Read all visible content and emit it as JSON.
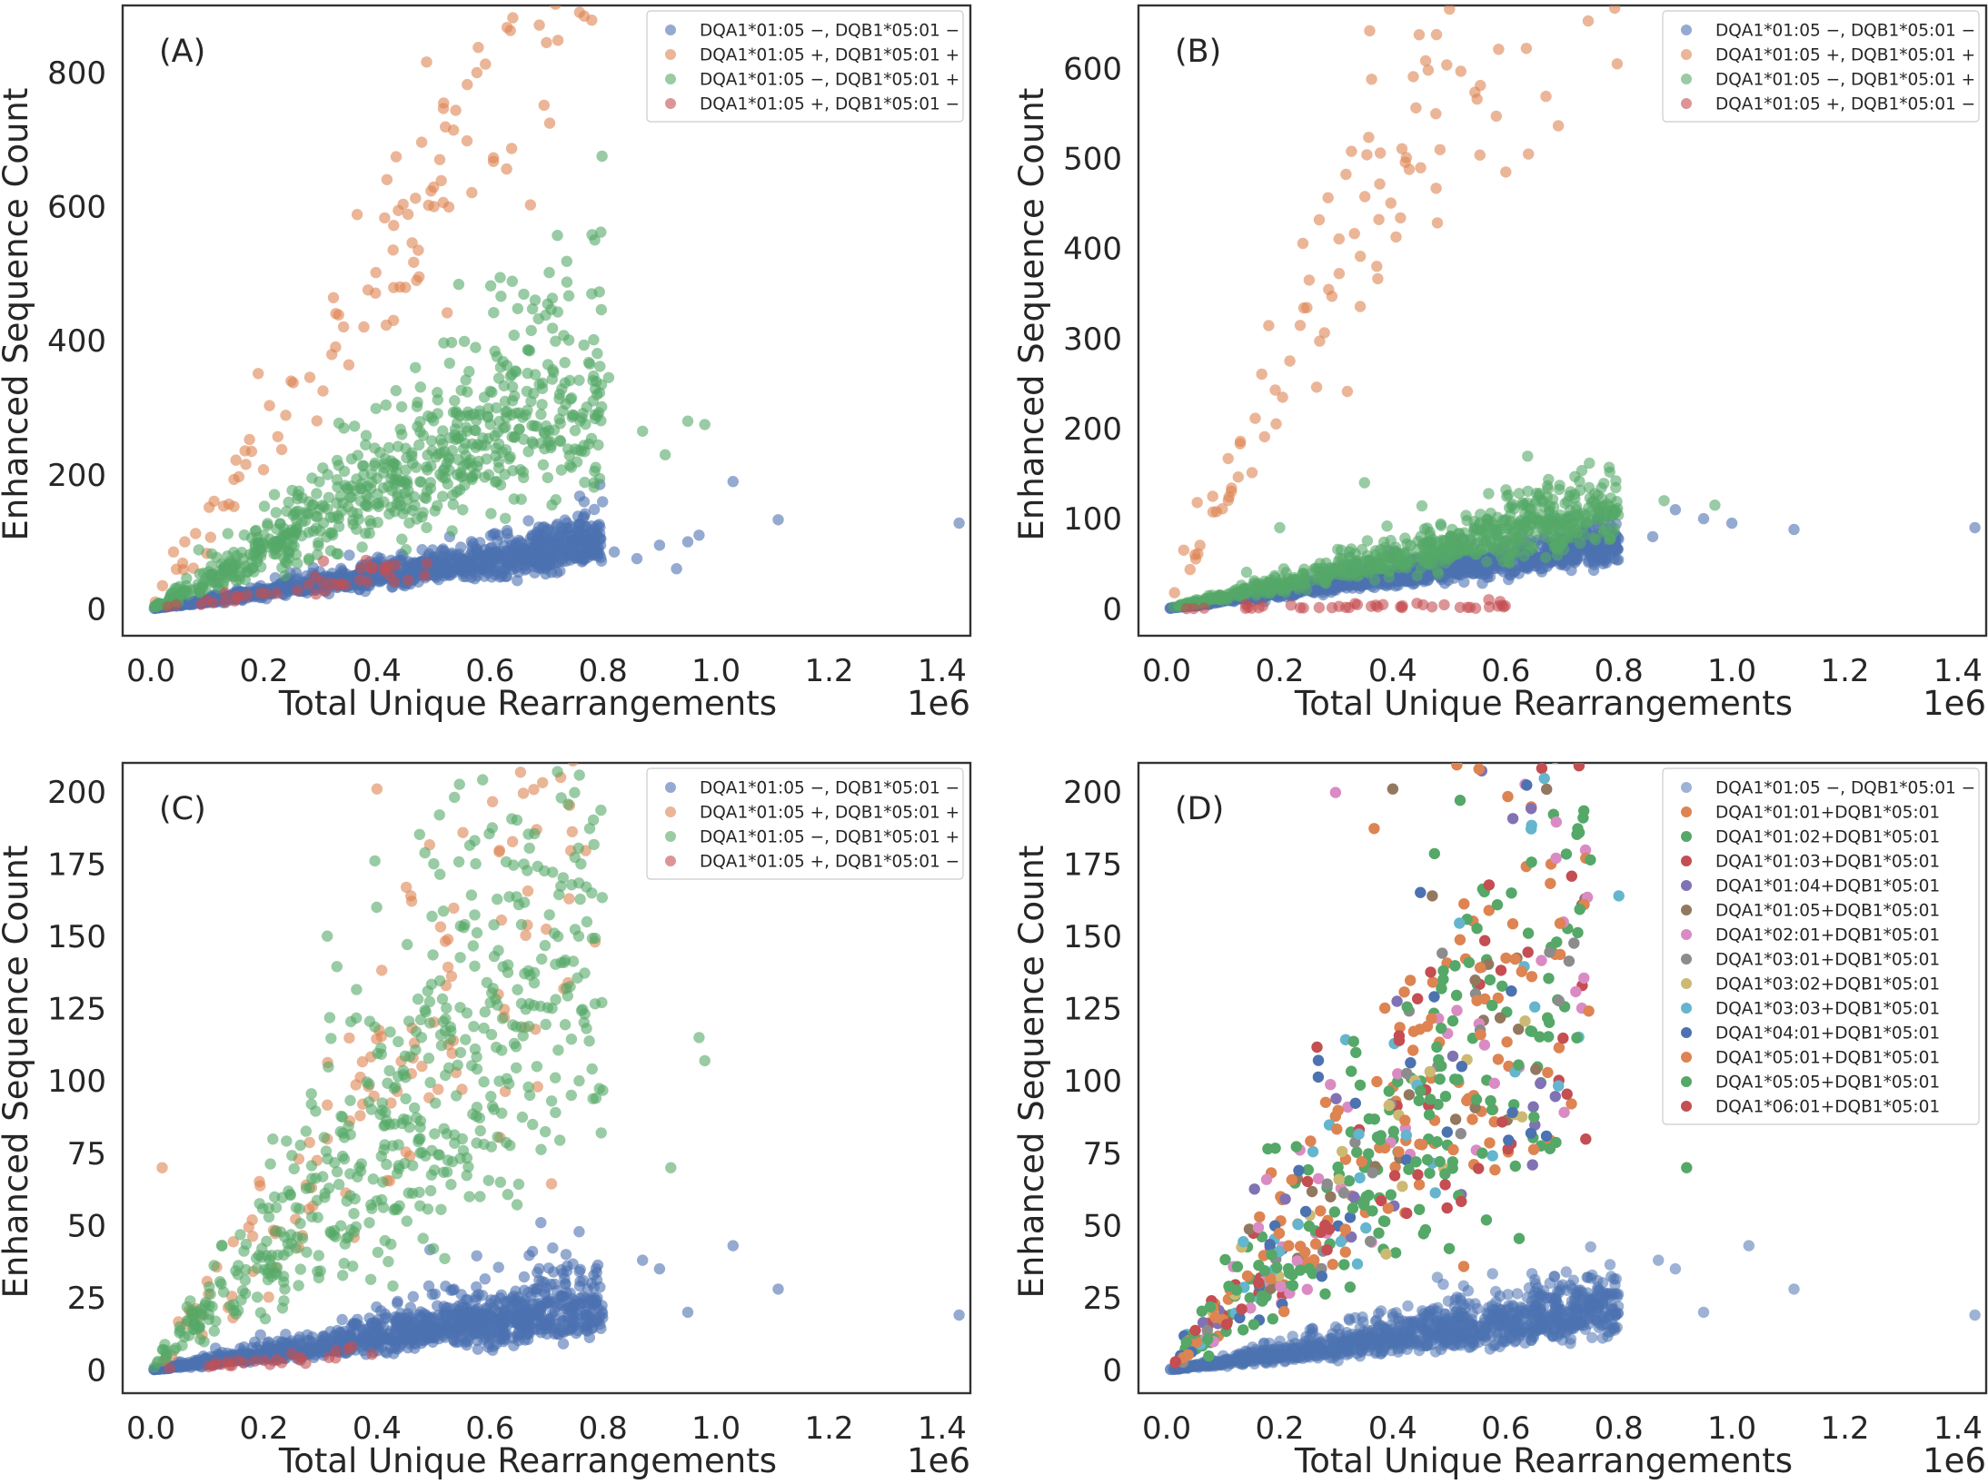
{
  "colors": {
    "blue": "#4c72b0",
    "orange": "#dd8452",
    "green": "#55a868",
    "red": "#c44e52",
    "purple": "#8172b3",
    "brown": "#937860",
    "pink": "#da8bc3",
    "gray": "#8c8c8c",
    "olive": "#ccb974",
    "cyan": "#64b5cd"
  },
  "chart_data": [
    {
      "type": "scatter",
      "panel_label": "(A)",
      "xlabel": "Total Unique Rearrangements",
      "ylabel": "Enhanced Sequence Count",
      "x_offset_text": "1e6",
      "xlim": [
        -0.05,
        1.45
      ],
      "ylim": [
        -40,
        900
      ],
      "xticks": [
        "0.0",
        "0.2",
        "0.4",
        "0.6",
        "0.8",
        "1.0",
        "1.2",
        "1.4"
      ],
      "yticks": [
        "0",
        "200",
        "400",
        "600",
        "800"
      ],
      "legend_position": "top-right",
      "series": [
        {
          "name": "DQA1*01:05 −, DQB1*05:01 −",
          "color": "#4c72b0",
          "alpha": 0.6,
          "count": 1150,
          "x_max": 0.8,
          "slope": 125,
          "spread": 0.2,
          "outliers": [
            [
              0.82,
              85
            ],
            [
              0.86,
              75
            ],
            [
              0.9,
              95
            ],
            [
              0.93,
              60
            ],
            [
              0.95,
              100
            ],
            [
              0.97,
              110
            ],
            [
              1.03,
              190
            ],
            [
              1.11,
              133
            ],
            [
              1.43,
              128
            ]
          ]
        },
        {
          "name": "DQA1*01:05 +, DQB1*05:01 +",
          "color": "#dd8452",
          "alpha": 0.6,
          "count": 120,
          "x_max": 0.82,
          "slope": 1250,
          "spread": 0.16,
          "outliers": [
            [
              0.06,
              100
            ],
            [
              0.04,
              85
            ]
          ]
        },
        {
          "name": "DQA1*01:05 −, DQB1*05:01 +",
          "color": "#55a868",
          "alpha": 0.6,
          "count": 700,
          "x_max": 0.8,
          "slope": 440,
          "spread": 0.27,
          "outliers": [
            [
              0.95,
              280
            ],
            [
              0.98,
              275
            ],
            [
              0.91,
              230
            ],
            [
              0.87,
              265
            ],
            [
              0.81,
              345
            ]
          ]
        },
        {
          "name": "DQA1*01:05 +, DQB1*05:01 −",
          "color": "#c44e52",
          "alpha": 0.6,
          "count": 40,
          "x_max": 0.5,
          "slope": 120,
          "spread": 0.25,
          "outliers": []
        }
      ]
    },
    {
      "type": "scatter",
      "panel_label": "(B)",
      "xlabel": "Total Unique Rearrangements",
      "ylabel": "Enhanced Sequence Count",
      "x_offset_text": "1e6",
      "xlim": [
        -0.05,
        1.45
      ],
      "ylim": [
        -30,
        670
      ],
      "xticks": [
        "0.0",
        "0.2",
        "0.4",
        "0.6",
        "0.8",
        "1.0",
        "1.2",
        "1.4"
      ],
      "yticks": [
        "0",
        "100",
        "200",
        "300",
        "400",
        "500",
        "600"
      ],
      "legend_position": "top-right",
      "series": [
        {
          "name": "DQA1*01:05 −, DQB1*05:01 −",
          "color": "#4c72b0",
          "alpha": 0.6,
          "count": 1150,
          "x_max": 0.8,
          "slope": 90,
          "spread": 0.18,
          "outliers": [
            [
              0.86,
              80
            ],
            [
              0.9,
              110
            ],
            [
              0.95,
              100
            ],
            [
              1.0,
              95
            ],
            [
              1.11,
              88
            ],
            [
              1.43,
              90
            ]
          ]
        },
        {
          "name": "DQA1*01:05 +, DQB1*05:01 +",
          "color": "#dd8452",
          "alpha": 0.6,
          "count": 130,
          "x_max": 0.82,
          "slope": 1200,
          "spread": 0.17,
          "outliers": [
            [
              0.03,
              65
            ],
            [
              0.05,
              60
            ],
            [
              0.6,
              485
            ],
            [
              0.64,
              505
            ]
          ]
        },
        {
          "name": "DQA1*01:05 −, DQB1*05:01 +",
          "color": "#55a868",
          "alpha": 0.6,
          "count": 700,
          "x_max": 0.8,
          "slope": 140,
          "spread": 0.2,
          "outliers": [
            [
              0.88,
              120
            ],
            [
              0.97,
              115
            ],
            [
              0.35,
              140
            ],
            [
              0.2,
              90
            ]
          ]
        },
        {
          "name": "DQA1*01:05 +, DQB1*05:01 −",
          "color": "#c44e52",
          "alpha": 0.6,
          "count": 35,
          "x_max": 0.6,
          "slope": 5,
          "spread": 0.5,
          "outliers": [
            [
              0.14,
              5
            ],
            [
              0.17,
              3
            ],
            [
              0.22,
              4
            ],
            [
              0.37,
              4
            ],
            [
              0.57,
              10
            ],
            [
              0.59,
              8
            ]
          ]
        }
      ]
    },
    {
      "type": "scatter",
      "panel_label": "(C)",
      "xlabel": "Total Unique Rearrangements",
      "ylabel": "Enhanced Sequence Count",
      "x_offset_text": "1e6",
      "xlim": [
        -0.05,
        1.45
      ],
      "ylim": [
        -8,
        210
      ],
      "xticks": [
        "0.0",
        "0.2",
        "0.4",
        "0.6",
        "0.8",
        "1.0",
        "1.2",
        "1.4"
      ],
      "yticks": [
        "0",
        "25",
        "50",
        "75",
        "100",
        "125",
        "150",
        "175",
        "200"
      ],
      "legend_position": "top-right",
      "series": [
        {
          "name": "DQA1*01:05 −, DQB1*05:01 −",
          "color": "#4c72b0",
          "alpha": 0.6,
          "count": 1150,
          "x_max": 0.8,
          "slope": 28,
          "spread": 0.3,
          "outliers": [
            [
              0.87,
              38
            ],
            [
              0.9,
              35
            ],
            [
              0.95,
              20
            ],
            [
              1.03,
              43
            ],
            [
              1.11,
              28
            ],
            [
              1.43,
              19
            ],
            [
              0.69,
              51
            ]
          ]
        },
        {
          "name": "DQA1*01:05 +, DQB1*05:01 +",
          "color": "#dd8452",
          "alpha": 0.6,
          "count": 130,
          "x_max": 0.8,
          "slope": 230,
          "spread": 0.3,
          "outliers": [
            [
              0.4,
              201
            ],
            [
              0.46,
              164
            ],
            [
              0.74,
              163
            ],
            [
              0.02,
              70
            ]
          ]
        },
        {
          "name": "DQA1*01:05 −, DQB1*05:01 +",
          "color": "#55a868",
          "alpha": 0.6,
          "count": 550,
          "x_max": 0.8,
          "slope": 200,
          "spread": 0.35,
          "outliers": [
            [
              0.78,
              165
            ],
            [
              0.92,
              70
            ],
            [
              0.97,
              115
            ],
            [
              0.98,
              107
            ],
            [
              0.66,
              175
            ],
            [
              0.5,
              42
            ]
          ]
        },
        {
          "name": "DQA1*01:05 +, DQB1*05:01 −",
          "color": "#c44e52",
          "alpha": 0.6,
          "count": 25,
          "x_max": 0.4,
          "slope": 15,
          "spread": 0.3,
          "outliers": []
        }
      ]
    },
    {
      "type": "scatter",
      "panel_label": "(D)",
      "xlabel": "Total Unique Rearrangements",
      "ylabel": "Enhanced Sequence Count",
      "x_offset_text": "1e6",
      "xlim": [
        -0.05,
        1.45
      ],
      "ylim": [
        -8,
        210
      ],
      "xticks": [
        "0.0",
        "0.2",
        "0.4",
        "0.6",
        "0.8",
        "1.0",
        "1.2",
        "1.4"
      ],
      "yticks": [
        "0",
        "25",
        "50",
        "75",
        "100",
        "125",
        "150",
        "175",
        "200"
      ],
      "legend_position": "top-right",
      "series": [
        {
          "name": "DQA1*01:05 −, DQB1*05:01 −",
          "color": "#4c72b0",
          "alpha": 0.55,
          "count": 1150,
          "x_max": 0.8,
          "slope": 28,
          "spread": 0.3,
          "outliers": [
            [
              0.87,
              38
            ],
            [
              0.9,
              35
            ],
            [
              0.95,
              20
            ],
            [
              1.03,
              43
            ],
            [
              1.11,
              28
            ],
            [
              1.43,
              19
            ]
          ]
        },
        {
          "name": "DQA1*01:01+DQB1*05:01",
          "color": "#dd8452",
          "alpha": 1,
          "count": 70,
          "x_max": 0.72,
          "slope": 210,
          "spread": 0.35,
          "outliers": [
            [
              0.68,
              175
            ]
          ]
        },
        {
          "name": "DQA1*01:02+DQB1*05:01",
          "color": "#55a868",
          "alpha": 1,
          "count": 110,
          "x_max": 0.75,
          "slope": 205,
          "spread": 0.35,
          "outliers": [
            [
              0.92,
              70
            ],
            [
              0.61,
              165
            ]
          ]
        },
        {
          "name": "DQA1*01:03+DQB1*05:01",
          "color": "#c44e52",
          "alpha": 1,
          "count": 30,
          "x_max": 0.75,
          "slope": 195,
          "spread": 0.35,
          "outliers": []
        },
        {
          "name": "DQA1*01:04+DQB1*05:01",
          "color": "#8172b3",
          "alpha": 1,
          "count": 25,
          "x_max": 0.7,
          "slope": 200,
          "spread": 0.35,
          "outliers": []
        },
        {
          "name": "DQA1*01:05+DQB1*05:01",
          "color": "#937860",
          "alpha": 1,
          "count": 25,
          "x_max": 0.75,
          "slope": 210,
          "spread": 0.35,
          "outliers": [
            [
              0.4,
              201
            ],
            [
              0.47,
              164
            ],
            [
              0.74,
              163
            ]
          ]
        },
        {
          "name": "DQA1*02:01+DQB1*05:01",
          "color": "#da8bc3",
          "alpha": 1,
          "count": 50,
          "x_max": 0.75,
          "slope": 205,
          "spread": 0.35,
          "outliers": []
        },
        {
          "name": "DQA1*03:01+DQB1*05:01",
          "color": "#8c8c8c",
          "alpha": 1,
          "count": 25,
          "x_max": 0.75,
          "slope": 200,
          "spread": 0.35,
          "outliers": []
        },
        {
          "name": "DQA1*03:02+DQB1*05:01",
          "color": "#ccb974",
          "alpha": 1,
          "count": 18,
          "x_max": 0.7,
          "slope": 200,
          "spread": 0.35,
          "outliers": []
        },
        {
          "name": "DQA1*03:03+DQB1*05:01",
          "color": "#64b5cd",
          "alpha": 1,
          "count": 35,
          "x_max": 0.78,
          "slope": 200,
          "spread": 0.35,
          "outliers": [
            [
              0.8,
              164
            ]
          ]
        },
        {
          "name": "DQA1*04:01+DQB1*05:01",
          "color": "#4c72b0",
          "alpha": 1,
          "count": 30,
          "x_max": 0.7,
          "slope": 200,
          "spread": 0.35,
          "outliers": []
        },
        {
          "name": "DQA1*05:01+DQB1*05:01",
          "color": "#dd8452",
          "alpha": 1,
          "count": 70,
          "x_max": 0.75,
          "slope": 210,
          "spread": 0.35,
          "outliers": []
        },
        {
          "name": "DQA1*05:05+DQB1*05:01",
          "color": "#55a868",
          "alpha": 1,
          "count": 90,
          "x_max": 0.75,
          "slope": 200,
          "spread": 0.35,
          "outliers": [
            [
              0.5,
              42
            ]
          ]
        },
        {
          "name": "DQA1*06:01+DQB1*05:01",
          "color": "#c44e52",
          "alpha": 1,
          "count": 25,
          "x_max": 0.75,
          "slope": 190,
          "spread": 0.35,
          "outliers": []
        }
      ]
    }
  ]
}
